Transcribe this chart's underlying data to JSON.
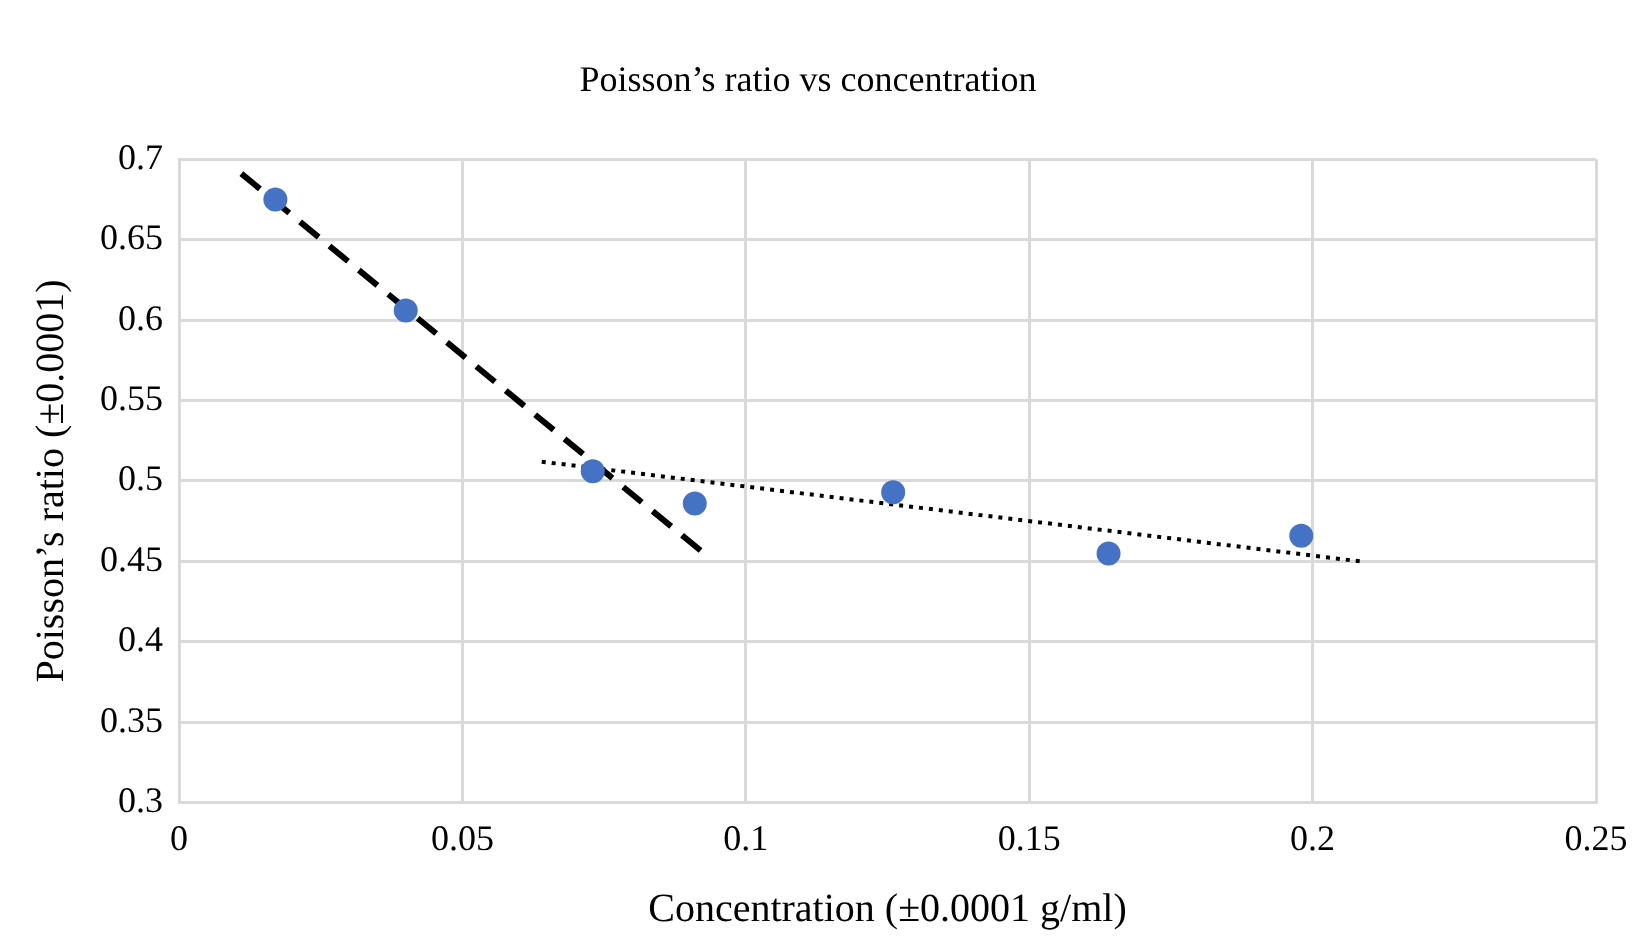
{
  "chart_data": {
    "type": "scatter",
    "title": "Poisson’s ratio vs concentration",
    "xlabel": "Concentration (±0.0001 g/ml)",
    "ylabel": "Poisson’s ratio (±0.0001)",
    "xlim": [
      0,
      0.25
    ],
    "xticks": [
      0,
      0.05,
      0.1,
      0.15,
      0.2,
      0.25
    ],
    "ylim": [
      0.3,
      0.7
    ],
    "yticks": [
      0.3,
      0.35,
      0.4,
      0.45,
      0.5,
      0.55,
      0.6,
      0.65,
      0.7
    ],
    "grid": true,
    "legend": false,
    "series": [
      {
        "type": "scatter",
        "color": "#4472c4",
        "marker": "circle",
        "x": [
          0.017,
          0.04,
          0.073,
          0.091,
          0.126,
          0.164,
          0.198
        ],
        "values": [
          0.675,
          0.606,
          0.506,
          0.486,
          0.493,
          0.455,
          0.466
        ]
      },
      {
        "type": "line",
        "color": "#000000",
        "line_style": "dashed",
        "marker": "none",
        "x": [
          0.011,
          0.093
        ],
        "values": [
          0.691,
          0.454
        ]
      },
      {
        "type": "line",
        "color": "#000000",
        "line_style": "dotted",
        "marker": "none",
        "x": [
          0.064,
          0.2085
        ],
        "values": [
          0.512,
          0.45
        ]
      }
    ]
  }
}
